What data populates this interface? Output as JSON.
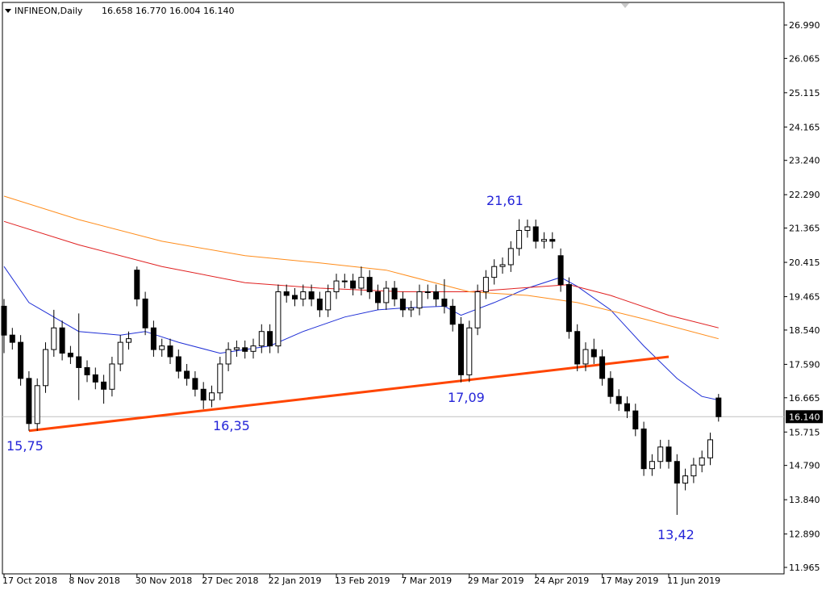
{
  "chart_data": {
    "type": "candlestick",
    "title": "INFINEON,Daily",
    "quote": "16.658 16.770 16.004 16.140",
    "categories": [
      "17 Oct 2018",
      null,
      null,
      null,
      null,
      null,
      null,
      null,
      "8 Nov 2018",
      null,
      null,
      null,
      null,
      null,
      null,
      null,
      "30 Nov 2018",
      null,
      null,
      null,
      null,
      null,
      null,
      null,
      "27 Dec 2018",
      null,
      null,
      null,
      null,
      null,
      null,
      null,
      "22 Jan 2019",
      null,
      null,
      null,
      null,
      null,
      null,
      null,
      "13 Feb 2019",
      null,
      null,
      null,
      null,
      null,
      null,
      null,
      "7 Mar 2019",
      null,
      null,
      null,
      null,
      null,
      null,
      null,
      "29 Mar 2019",
      null,
      null,
      null,
      null,
      null,
      null,
      null,
      "24 Apr 2019",
      null,
      null,
      null,
      null,
      null,
      null,
      null,
      "17 May 2019",
      null,
      null,
      null,
      null,
      null,
      null,
      null,
      "11 Jun 2019",
      null,
      null,
      null,
      null,
      null,
      null
    ],
    "open": [
      19.2,
      18.4,
      18.2,
      17.2,
      15.95,
      17.0,
      18.0,
      18.6,
      17.9,
      17.8,
      17.5,
      17.3,
      17.1,
      16.9,
      17.6,
      18.2,
      20.2,
      19.4,
      18.6,
      18.0,
      18.1,
      17.8,
      17.4,
      17.2,
      16.9,
      16.6,
      16.8,
      17.6,
      18.0,
      18.05,
      17.95,
      18.1,
      18.5,
      18.1,
      19.6,
      19.5,
      19.4,
      19.6,
      19.4,
      19.1,
      19.6,
      19.9,
      19.9,
      19.7,
      20.0,
      19.6,
      19.3,
      19.7,
      19.4,
      19.1,
      19.15,
      19.6,
      19.6,
      19.4,
      19.2,
      18.7,
      17.3,
      18.6,
      19.6,
      20.0,
      20.3,
      20.35,
      20.8,
      21.3,
      21.4,
      21.0,
      21.05,
      20.6,
      19.8,
      18.5,
      17.6,
      18.0,
      17.8,
      17.2,
      16.7,
      16.5,
      16.3,
      15.8,
      14.7,
      14.9,
      15.3,
      14.9,
      14.3,
      14.5,
      14.8,
      15.0,
      16.658
    ],
    "high": [
      19.4,
      18.6,
      18.4,
      17.4,
      17.2,
      18.2,
      19.1,
      18.8,
      18.1,
      19.0,
      17.7,
      17.5,
      17.3,
      17.8,
      18.4,
      18.5,
      20.3,
      19.6,
      18.8,
      18.3,
      18.3,
      18.0,
      17.6,
      17.4,
      17.1,
      17.0,
      17.8,
      18.2,
      18.25,
      18.25,
      18.3,
      18.7,
      18.7,
      19.8,
      19.8,
      19.7,
      19.8,
      19.8,
      19.6,
      19.8,
      20.1,
      20.1,
      20.1,
      20.3,
      20.2,
      19.8,
      19.9,
      19.9,
      19.6,
      19.35,
      19.8,
      19.8,
      19.8,
      19.95,
      19.4,
      18.9,
      18.8,
      19.8,
      20.2,
      20.5,
      20.55,
      21.0,
      21.61,
      21.6,
      21.6,
      21.25,
      21.25,
      20.8,
      20.0,
      18.7,
      18.2,
      18.3,
      18.0,
      17.4,
      16.9,
      16.7,
      16.5,
      16.0,
      15.1,
      15.5,
      15.5,
      15.1,
      14.7,
      15.0,
      15.2,
      15.7,
      16.77
    ],
    "low": [
      17.9,
      18.0,
      17.0,
      15.75,
      15.75,
      16.8,
      17.8,
      17.7,
      17.6,
      16.6,
      17.1,
      16.9,
      16.5,
      16.7,
      17.4,
      18.0,
      19.2,
      18.4,
      17.8,
      17.8,
      17.6,
      17.2,
      17.0,
      16.7,
      16.35,
      16.4,
      16.6,
      17.4,
      17.8,
      17.75,
      17.75,
      17.9,
      17.9,
      17.9,
      19.3,
      19.2,
      19.2,
      19.2,
      18.9,
      18.9,
      19.4,
      19.7,
      19.5,
      19.5,
      19.4,
      19.1,
      19.1,
      19.2,
      18.9,
      18.9,
      18.95,
      19.4,
      19.2,
      19.0,
      18.5,
      17.09,
      17.1,
      18.4,
      19.4,
      19.8,
      20.1,
      20.15,
      20.6,
      21.1,
      20.8,
      20.8,
      20.8,
      19.6,
      18.3,
      17.4,
      17.4,
      17.6,
      17.0,
      16.5,
      16.3,
      16.1,
      15.6,
      14.5,
      14.5,
      14.7,
      14.7,
      13.42,
      14.1,
      14.3,
      14.6,
      14.8,
      16.004
    ],
    "close": [
      18.4,
      18.2,
      17.2,
      15.95,
      17.0,
      18.0,
      18.6,
      17.9,
      17.8,
      17.5,
      17.3,
      17.1,
      16.9,
      17.6,
      18.2,
      18.3,
      19.4,
      18.6,
      18.0,
      18.1,
      17.8,
      17.4,
      17.2,
      16.9,
      16.6,
      16.8,
      17.6,
      18.0,
      18.05,
      17.95,
      18.1,
      18.5,
      18.1,
      19.6,
      19.5,
      19.4,
      19.6,
      19.4,
      19.1,
      19.6,
      19.9,
      19.9,
      19.7,
      20.0,
      19.6,
      19.3,
      19.7,
      19.4,
      19.1,
      19.15,
      19.6,
      19.6,
      19.4,
      19.2,
      18.7,
      17.3,
      18.6,
      19.6,
      20.0,
      20.3,
      20.35,
      20.8,
      21.3,
      21.4,
      21.0,
      21.05,
      21.0,
      19.8,
      18.5,
      17.6,
      18.0,
      17.8,
      17.2,
      16.7,
      16.5,
      16.3,
      15.8,
      14.7,
      14.9,
      15.3,
      14.9,
      14.3,
      14.5,
      14.8,
      15.0,
      15.5,
      16.14
    ],
    "up_color": "#ffffff",
    "down_color": "#000000",
    "lines": [
      {
        "color": "#1f2fd6",
        "x": [
          0,
          3,
          9,
          14,
          17,
          21,
          26,
          32,
          36,
          41,
          45,
          48,
          53,
          55,
          59,
          63,
          67,
          69,
          73,
          77,
          81,
          84,
          86
        ],
        "values": [
          20.3,
          19.3,
          18.5,
          18.4,
          18.5,
          18.2,
          17.9,
          18.1,
          18.5,
          18.9,
          19.1,
          19.15,
          19.2,
          18.95,
          19.3,
          19.7,
          20.0,
          19.75,
          19.1,
          18.1,
          17.2,
          16.7,
          16.6
        ]
      },
      {
        "color": "#e02020",
        "x": [
          0,
          9,
          19,
          29,
          38,
          48,
          56,
          68,
          73,
          80,
          86
        ],
        "values": [
          21.55,
          20.9,
          20.3,
          19.85,
          19.7,
          19.6,
          19.6,
          19.8,
          19.5,
          18.95,
          18.6
        ]
      },
      {
        "color": "#ff8c1a",
        "x": [
          0,
          9,
          19,
          29,
          38,
          46,
          56,
          63,
          69,
          77,
          86
        ],
        "values": [
          22.25,
          21.6,
          21.0,
          20.6,
          20.4,
          20.2,
          19.6,
          19.5,
          19.3,
          18.85,
          18.3
        ]
      }
    ],
    "trendline": {
      "color": "#ff4500",
      "x": [
        3,
        80
      ],
      "values": [
        15.75,
        17.8
      ]
    },
    "annotations": [
      "15,75",
      "16,35",
      "17,09",
      "21,61",
      "13,42"
    ],
    "last_price": {
      "value": 16.14,
      "label": "16.140"
    },
    "ylim": [
      11.786,
      27.616
    ],
    "yticks": [
      {
        "value": 26.99,
        "label": "26.990"
      },
      26.065,
      25.115,
      24.165,
      {
        "value": 23.24,
        "label": "23.240"
      },
      {
        "value": 22.29,
        "label": "22.290"
      },
      21.365,
      20.415,
      19.465,
      {
        "value": 18.54,
        "label": "18.540"
      },
      {
        "value": 17.59,
        "label": "17.590"
      },
      16.665,
      15.715,
      {
        "value": 14.79,
        "label": "14.790"
      },
      {
        "value": 13.84,
        "label": "13.840"
      },
      {
        "value": 12.89,
        "label": "12.890"
      },
      11.965
    ]
  }
}
